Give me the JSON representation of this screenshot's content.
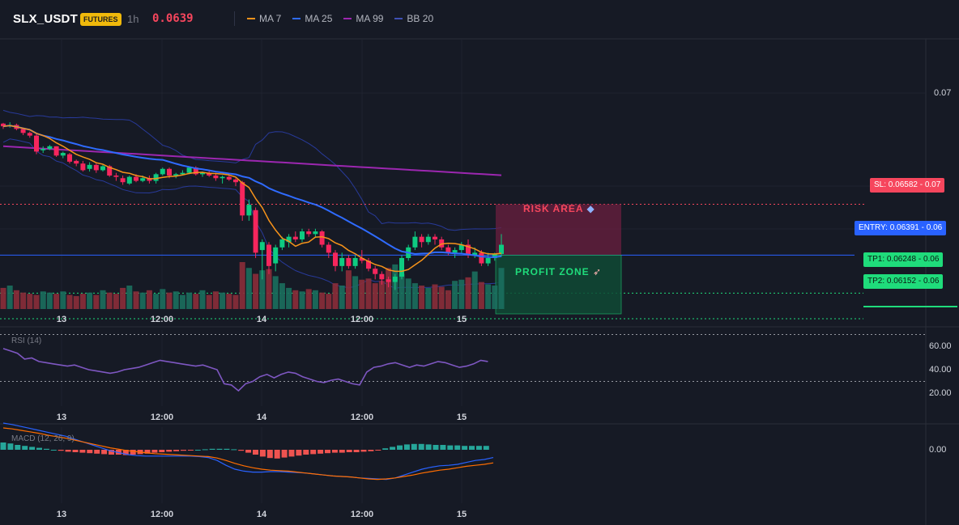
{
  "header": {
    "symbol": "SLX_USDT",
    "badge": "FUTURES",
    "timeframe": "1h",
    "price": "0.0639",
    "legend": [
      {
        "label": "MA 7",
        "color": "#f7931a"
      },
      {
        "label": "MA 25",
        "color": "#2f6bff"
      },
      {
        "label": "MA 99",
        "color": "#9c27b0"
      },
      {
        "label": "BB 20",
        "color": "#283a9a"
      }
    ]
  },
  "price_axis": {
    "ticks": [
      {
        "label": "0.07",
        "value": 0.07
      }
    ]
  },
  "levels": {
    "sl": {
      "value": 0.06582,
      "tag": "SL: 0.06582",
      "axis": "0.07",
      "color": "#f6465d"
    },
    "entry": {
      "value": 0.06391,
      "tag": "ENTRY: 0.06391",
      "axis": "0.06",
      "color": "#2962ff"
    },
    "tp1": {
      "value": 0.06248,
      "tag": "TP1: 0.06248",
      "axis": "0.06",
      "color": "#1fdc7b"
    },
    "tp2": {
      "value": 0.06152,
      "tag": "TP2: 0.06152",
      "axis": "0.06",
      "color": "#1fdc7b"
    }
  },
  "zones": {
    "risk_label": "RISK AREA",
    "profit_label": "PROFIT ZONE"
  },
  "time_axis": [
    "13",
    "12:00",
    "14",
    "12:00",
    "15"
  ],
  "rsi": {
    "title": "RSI (14)",
    "ticks": [
      "60.00",
      "40.00",
      "20.00"
    ],
    "overbought": 70,
    "oversold": 30
  },
  "macd": {
    "title": "MACD (12, 26, 9)",
    "ticks": [
      "0.00"
    ]
  },
  "chart_data": {
    "type": "candlestick",
    "interval": "1h",
    "candles": [
      [
        0.06885,
        0.06888,
        0.06865,
        0.06875
      ],
      [
        0.06875,
        0.0689,
        0.0687,
        0.0688
      ],
      [
        0.0688,
        0.06885,
        0.0686,
        0.06865
      ],
      [
        0.06865,
        0.0687,
        0.06842,
        0.0685
      ],
      [
        0.0685,
        0.06855,
        0.06832,
        0.0684
      ],
      [
        0.0684,
        0.0685,
        0.0677,
        0.0678
      ],
      [
        0.06785,
        0.068,
        0.06775,
        0.0679
      ],
      [
        0.0679,
        0.06805,
        0.06785,
        0.068
      ],
      [
        0.068,
        0.068,
        0.0676,
        0.06765
      ],
      [
        0.06765,
        0.0678,
        0.06755,
        0.06775
      ],
      [
        0.0677,
        0.06775,
        0.06735,
        0.06742
      ],
      [
        0.06745,
        0.0675,
        0.06725,
        0.06735
      ],
      [
        0.06735,
        0.06745,
        0.06705,
        0.0671
      ],
      [
        0.06715,
        0.0674,
        0.06705,
        0.0673
      ],
      [
        0.0673,
        0.06735,
        0.067,
        0.0671
      ],
      [
        0.0671,
        0.0673,
        0.06705,
        0.06725
      ],
      [
        0.06725,
        0.0673,
        0.06685,
        0.0669
      ],
      [
        0.0669,
        0.067,
        0.0667,
        0.06685
      ],
      [
        0.0668,
        0.0669,
        0.06655,
        0.06665
      ],
      [
        0.0666,
        0.0669,
        0.06655,
        0.06685
      ],
      [
        0.06685,
        0.06695,
        0.06665,
        0.0667
      ],
      [
        0.0667,
        0.0669,
        0.06665,
        0.0668
      ],
      [
        0.0668,
        0.0669,
        0.0666,
        0.0667
      ],
      [
        0.0667,
        0.067,
        0.0666,
        0.06695
      ],
      [
        0.06695,
        0.0672,
        0.0669,
        0.06715
      ],
      [
        0.06715,
        0.0672,
        0.0668,
        0.0669
      ],
      [
        0.0669,
        0.067,
        0.0668,
        0.06695
      ],
      [
        0.06695,
        0.0671,
        0.0669,
        0.067
      ],
      [
        0.067,
        0.06725,
        0.06695,
        0.0672
      ],
      [
        0.0672,
        0.06725,
        0.0669,
        0.06695
      ],
      [
        0.06695,
        0.06705,
        0.06685,
        0.067
      ],
      [
        0.067,
        0.0671,
        0.06685,
        0.0669
      ],
      [
        0.0669,
        0.067,
        0.0667,
        0.0668
      ],
      [
        0.0668,
        0.0669,
        0.0666,
        0.06685
      ],
      [
        0.06685,
        0.0669,
        0.0667,
        0.06675
      ],
      [
        0.06675,
        0.0668,
        0.0665,
        0.06665
      ],
      [
        0.06665,
        0.0667,
        0.0652,
        0.0654
      ],
      [
        0.0654,
        0.066,
        0.0652,
        0.0658
      ],
      [
        0.0656,
        0.0657,
        0.0638,
        0.064
      ],
      [
        0.0641,
        0.0645,
        0.063,
        0.0644
      ],
      [
        0.0643,
        0.0644,
        0.0632,
        0.0635
      ],
      [
        0.0636,
        0.0643,
        0.0633,
        0.0642
      ],
      [
        0.0642,
        0.0646,
        0.0641,
        0.0645
      ],
      [
        0.0644,
        0.0647,
        0.0642,
        0.0646
      ],
      [
        0.0646,
        0.0648,
        0.0644,
        0.0645
      ],
      [
        0.0645,
        0.0649,
        0.0644,
        0.0648
      ],
      [
        0.0648,
        0.0649,
        0.0646,
        0.0647
      ],
      [
        0.0647,
        0.0649,
        0.0646,
        0.0648
      ],
      [
        0.0648,
        0.06485,
        0.0642,
        0.0643
      ],
      [
        0.0643,
        0.0644,
        0.0638,
        0.064
      ],
      [
        0.064,
        0.0641,
        0.0633,
        0.0635
      ],
      [
        0.0635,
        0.064,
        0.0633,
        0.0638
      ],
      [
        0.0638,
        0.0639,
        0.0634,
        0.0635
      ],
      [
        0.0635,
        0.0639,
        0.0634,
        0.0638
      ],
      [
        0.0638,
        0.0641,
        0.0636,
        0.0637
      ],
      [
        0.0637,
        0.0638,
        0.0633,
        0.0634
      ],
      [
        0.0634,
        0.0635,
        0.063,
        0.0632
      ],
      [
        0.0632,
        0.0633,
        0.0628,
        0.063
      ],
      [
        0.063,
        0.0631,
        0.0627,
        0.0629
      ],
      [
        0.0629,
        0.0632,
        0.0626,
        0.0631
      ],
      [
        0.0631,
        0.0639,
        0.063,
        0.0638
      ],
      [
        0.0638,
        0.0643,
        0.0637,
        0.0642
      ],
      [
        0.0642,
        0.0648,
        0.0641,
        0.0646
      ],
      [
        0.0646,
        0.0647,
        0.0642,
        0.0644
      ],
      [
        0.0644,
        0.0647,
        0.0643,
        0.0646
      ],
      [
        0.0646,
        0.0647,
        0.0643,
        0.0645
      ],
      [
        0.0645,
        0.0646,
        0.0641,
        0.0642
      ],
      [
        0.0642,
        0.0643,
        0.0639,
        0.064
      ],
      [
        0.064,
        0.0642,
        0.0638,
        0.0641
      ],
      [
        0.0641,
        0.0644,
        0.064,
        0.0643
      ],
      [
        0.0643,
        0.0645,
        0.0638,
        0.0639
      ],
      [
        0.0639,
        0.0642,
        0.0638,
        0.064
      ],
      [
        0.064,
        0.0641,
        0.0635,
        0.0636
      ],
      [
        0.0636,
        0.064,
        0.0635,
        0.0638
      ],
      [
        0.0638,
        0.064,
        0.0637,
        0.06395
      ],
      [
        0.06395,
        0.0647,
        0.06385,
        0.0643
      ]
    ],
    "volume": [
      18,
      20,
      16,
      14,
      13,
      12,
      15,
      14,
      13,
      15,
      12,
      11,
      13,
      14,
      12,
      16,
      14,
      13,
      18,
      20,
      15,
      14,
      16,
      13,
      17,
      14,
      15,
      12,
      14,
      13,
      16,
      12,
      15,
      14,
      13,
      12,
      40,
      35,
      30,
      33,
      34,
      28,
      22,
      18,
      16,
      15,
      17,
      16,
      14,
      13,
      22,
      20,
      33,
      28,
      25,
      26,
      22,
      24,
      35,
      38,
      30,
      26,
      22,
      20,
      18,
      21,
      19,
      16,
      24,
      25,
      27,
      32,
      23,
      21,
      20,
      35
    ],
    "rsi": [
      58,
      56,
      54,
      49,
      50,
      47,
      46,
      45,
      44,
      43,
      44,
      42,
      40,
      39,
      38,
      37,
      38,
      40,
      41,
      42,
      44,
      46,
      48,
      47,
      46,
      45,
      44,
      43,
      44,
      42,
      40,
      28,
      27,
      22,
      28,
      30,
      34,
      36,
      33,
      36,
      38,
      37,
      34,
      32,
      30,
      29,
      31,
      32,
      30,
      28,
      27,
      38,
      42,
      43,
      45,
      46,
      44,
      42,
      44,
      43,
      45,
      47,
      46,
      44,
      42,
      43,
      45,
      48,
      47
    ],
    "macd_hist": [
      0.00015,
      0.00013,
      0.0001,
      8e-05,
      6e-05,
      4e-05,
      2e-05,
      0,
      -2e-05,
      -4e-05,
      -5e-05,
      -6e-05,
      -7e-05,
      -8e-05,
      -9e-05,
      -0.0001,
      -0.0001,
      -0.00011,
      -0.0001,
      -9e-05,
      -8e-05,
      -6e-05,
      -5e-05,
      -4e-05,
      -3e-05,
      -2e-05,
      -1e-05,
      0,
      1e-05,
      2e-05,
      2e-05,
      2e-05,
      1e-05,
      -2e-05,
      -6e-05,
      -0.0001,
      -0.00014,
      -0.00017,
      -0.00018,
      -0.00016,
      -0.00014,
      -0.00012,
      -0.0001,
      -9e-05,
      -8e-05,
      -7e-05,
      -6e-05,
      -6e-05,
      -5e-05,
      -5e-05,
      -4e-05,
      -3e-05,
      -1e-05,
      3e-05,
      6e-05,
      9e-05,
      0.00011,
      0.00012,
      0.00012,
      0.00011,
      0.0001,
      0.0001,
      9e-05,
      9e-05,
      8e-05,
      8e-05,
      8e-05,
      8e-05
    ],
    "macd_line": [
      0.00055,
      0.00052,
      0.00048,
      0.00044,
      0.0004,
      0.00036,
      0.00032,
      0.00028,
      0.00022,
      0.00016,
      0.0001,
      4e-05,
      -2e-05,
      -6e-05,
      -0.0001,
      -0.00012,
      -0.00013,
      -0.00013,
      -0.00013,
      -0.00013,
      -0.00013,
      -0.00013,
      -0.00014,
      -0.00016,
      -0.00022,
      -0.00032,
      -0.0004,
      -0.00044,
      -0.00046,
      -0.00046,
      -0.00045,
      -0.00045,
      -0.00046,
      -0.00047,
      -0.00048,
      -0.0005,
      -0.00052,
      -0.00054,
      -0.00055,
      -0.00056,
      -0.00058,
      -0.00059,
      -0.0006,
      -0.00061,
      -0.00058,
      -0.00052,
      -0.00046,
      -0.0004,
      -0.00036,
      -0.00033,
      -0.00032,
      -0.0003,
      -0.00026,
      -0.00022,
      -0.0002,
      -0.00016
    ],
    "macd_signal": [
      0.00045,
      0.00043,
      0.0004,
      0.00037,
      0.00034,
      0.0003,
      0.00027,
      0.00024,
      0.0002,
      0.00016,
      0.00012,
      8e-05,
      4e-05,
      1e-05,
      -2e-05,
      -4e-05,
      -6e-05,
      -8e-05,
      -9e-05,
      -0.0001,
      -0.00011,
      -0.00012,
      -0.00013,
      -0.00014,
      -0.00017,
      -0.00022,
      -0.00028,
      -0.00033,
      -0.00037,
      -0.0004,
      -0.00042,
      -0.00043,
      -0.00044,
      -0.00046,
      -0.00048,
      -0.0005,
      -0.00052,
      -0.00054,
      -0.00055,
      -0.00056,
      -0.00058,
      -0.0006,
      -0.00061,
      -0.0006,
      -0.00058,
      -0.00055,
      -0.00052,
      -0.00048,
      -0.00045,
      -0.00042,
      -0.0004,
      -0.00037,
      -0.00034,
      -0.00032,
      -0.0003,
      -0.00027
    ]
  }
}
